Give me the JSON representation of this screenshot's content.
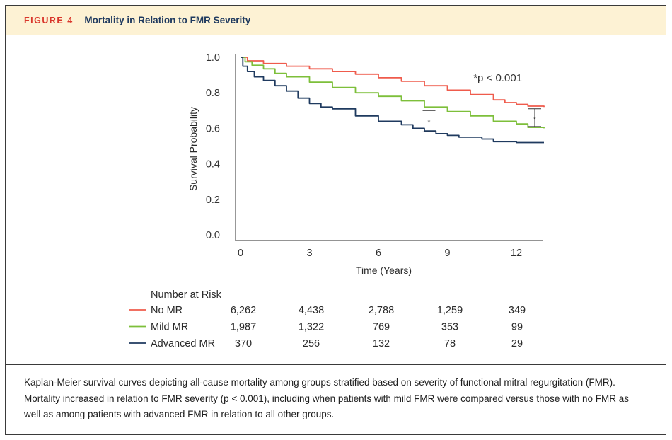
{
  "figure": {
    "label": "FIGURE 4",
    "title": "Mortality in Relation to FMR Severity"
  },
  "chart_data": {
    "type": "line",
    "subtype": "kaplan-meier",
    "title": "Mortality in Relation to FMR Severity",
    "xlabel": "Time (Years)",
    "ylabel": "Survival Probability",
    "xlim": [
      0,
      13.2
    ],
    "ylim": [
      0,
      1.0
    ],
    "xticks": [
      0,
      3,
      6,
      9,
      12
    ],
    "xtick_labels": [
      "0",
      "3",
      "6",
      "9",
      "12"
    ],
    "yticks": [
      0,
      0.2,
      0.4,
      0.6,
      0.8,
      1.0
    ],
    "ytick_labels": [
      "0.0",
      "0.2",
      "0.4",
      "0.6",
      "0.8",
      "1.0"
    ],
    "grid": false,
    "annotation": "*p < 0.001",
    "significance_brackets": [
      {
        "x": 8.2,
        "y_low": 0.58,
        "y_high": 0.7,
        "label": "*"
      },
      {
        "x": 12.8,
        "y_low": 0.61,
        "y_high": 0.71,
        "label": "*"
      }
    ],
    "series": [
      {
        "name": "No MR",
        "color": "#ef5b4c",
        "x": [
          0,
          0.3,
          1,
          2,
          3,
          4,
          5,
          6,
          7,
          8,
          9,
          10,
          11,
          11.5,
          12,
          12.5,
          13.2
        ],
        "y": [
          1.0,
          0.98,
          0.965,
          0.95,
          0.935,
          0.92,
          0.905,
          0.885,
          0.865,
          0.84,
          0.815,
          0.79,
          0.76,
          0.745,
          0.735,
          0.725,
          0.72
        ]
      },
      {
        "name": "Mild MR",
        "color": "#7dbf3a",
        "x": [
          0,
          0.2,
          0.5,
          1,
          1.5,
          2,
          3,
          4,
          5,
          6,
          7,
          8,
          9,
          10,
          11,
          12,
          12.5,
          13.2
        ],
        "y": [
          1.0,
          0.975,
          0.955,
          0.935,
          0.91,
          0.89,
          0.86,
          0.83,
          0.8,
          0.78,
          0.755,
          0.72,
          0.695,
          0.67,
          0.64,
          0.625,
          0.605,
          0.6
        ]
      },
      {
        "name": "Advanced MR",
        "color": "#1f3a5f",
        "x": [
          0,
          0.1,
          0.3,
          0.6,
          1,
          1.5,
          2,
          2.5,
          3,
          3.5,
          4,
          5,
          6,
          7,
          7.5,
          8,
          8.5,
          9,
          9.5,
          10,
          10.5,
          11,
          12,
          13.2
        ],
        "y": [
          1.0,
          0.95,
          0.92,
          0.89,
          0.87,
          0.84,
          0.81,
          0.77,
          0.74,
          0.72,
          0.71,
          0.67,
          0.64,
          0.62,
          0.6,
          0.585,
          0.57,
          0.56,
          0.55,
          0.55,
          0.54,
          0.525,
          0.52,
          0.52
        ]
      }
    ]
  },
  "risk_table": {
    "title": "Number at Risk",
    "rows": [
      {
        "name": "No MR",
        "color": "#ef5b4c",
        "values": [
          "6,262",
          "4,438",
          "2,788",
          "1,259",
          "349"
        ]
      },
      {
        "name": "Mild MR",
        "color": "#7dbf3a",
        "values": [
          "1,987",
          "1,322",
          "769",
          "353",
          "99"
        ]
      },
      {
        "name": "Advanced MR",
        "color": "#1f3a5f",
        "values": [
          "370",
          "256",
          "132",
          "78",
          "29"
        ]
      }
    ]
  },
  "caption": "Kaplan-Meier survival curves depicting all-cause mortality among groups stratified based on severity of functional mitral regurgitation (FMR). Mortality increased in relation to FMR severity (p < 0.001), including when patients with mild FMR were compared versus those with no FMR as well as among patients with advanced FMR in relation to all other groups."
}
